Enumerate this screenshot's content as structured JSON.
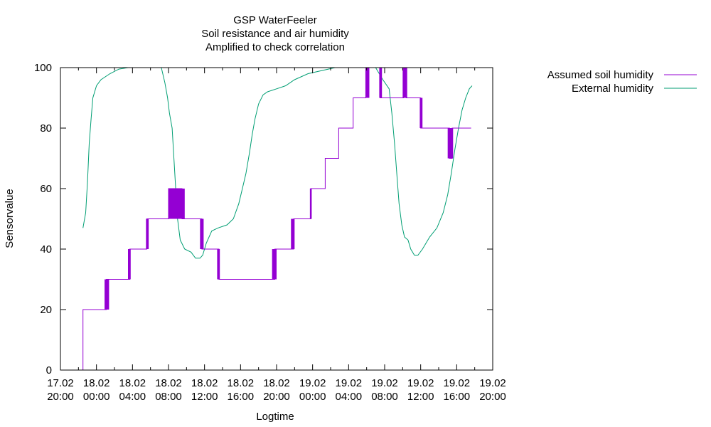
{
  "chart_data": {
    "type": "line",
    "title": "GSP WaterFeeler",
    "subtitle": [
      "Soil resistance and air humidity",
      "Amplified to check correlation"
    ],
    "xlabel": "Logtime",
    "ylabel": "Sensorvalue",
    "xlim_hours": [
      0,
      48
    ],
    "ylim": [
      0,
      100
    ],
    "y_ticks": [
      0,
      20,
      40,
      60,
      80,
      100
    ],
    "x_ticks": [
      {
        "h": 0,
        "date": "17.02",
        "time": "20:00"
      },
      {
        "h": 4,
        "date": "18.02",
        "time": "00:00"
      },
      {
        "h": 8,
        "date": "18.02",
        "time": "04:00"
      },
      {
        "h": 12,
        "date": "18.02",
        "time": "08:00"
      },
      {
        "h": 16,
        "date": "18.02",
        "time": "12:00"
      },
      {
        "h": 20,
        "date": "18.02",
        "time": "16:00"
      },
      {
        "h": 24,
        "date": "18.02",
        "time": "20:00"
      },
      {
        "h": 28,
        "date": "19.02",
        "time": "00:00"
      },
      {
        "h": 32,
        "date": "19.02",
        "time": "04:00"
      },
      {
        "h": 36,
        "date": "19.02",
        "time": "08:00"
      },
      {
        "h": 40,
        "date": "19.02",
        "time": "12:00"
      },
      {
        "h": 44,
        "date": "19.02",
        "time": "16:00"
      },
      {
        "h": 48,
        "date": "19.02",
        "time": "20:00"
      }
    ],
    "grid": false,
    "legend_position": "outside-top-right",
    "series": [
      {
        "name": "Assumed soil humidity",
        "color": "#9400d3",
        "style": "step",
        "points": [
          [
            2.5,
            0
          ],
          [
            2.5,
            20
          ],
          [
            5.1,
            20
          ],
          [
            5.1,
            30
          ],
          [
            7.7,
            30
          ],
          [
            7.7,
            40
          ],
          [
            9.6,
            40
          ],
          [
            9.6,
            50
          ],
          [
            12.0,
            50
          ],
          [
            12.0,
            60
          ],
          [
            13.5,
            60
          ],
          [
            13.5,
            50
          ],
          [
            15.7,
            50
          ],
          [
            15.7,
            40
          ],
          [
            17.6,
            40
          ],
          [
            17.6,
            30
          ],
          [
            23.8,
            30
          ],
          [
            23.8,
            40
          ],
          [
            25.9,
            40
          ],
          [
            25.9,
            50
          ],
          [
            27.8,
            50
          ],
          [
            27.8,
            60
          ],
          [
            29.4,
            60
          ],
          [
            29.4,
            70
          ],
          [
            30.9,
            70
          ],
          [
            30.9,
            80
          ],
          [
            32.5,
            80
          ],
          [
            32.5,
            90
          ],
          [
            33.9,
            90
          ],
          [
            33.9,
            100
          ],
          [
            35.5,
            100
          ],
          [
            35.5,
            90
          ],
          [
            38.1,
            90
          ],
          [
            38.1,
            100
          ],
          [
            38.4,
            100
          ],
          [
            38.4,
            90
          ],
          [
            40.0,
            90
          ],
          [
            40.0,
            80
          ],
          [
            43.2,
            80
          ],
          [
            43.2,
            70
          ],
          [
            43.5,
            70
          ],
          [
            43.5,
            80
          ],
          [
            45.6,
            80
          ]
        ],
        "noise_bands": [
          {
            "x1": 4.9,
            "x2": 5.4,
            "y1": 20,
            "y2": 30
          },
          {
            "x1": 7.5,
            "x2": 7.8,
            "y1": 30,
            "y2": 40
          },
          {
            "x1": 9.5,
            "x2": 9.8,
            "y1": 40,
            "y2": 50
          },
          {
            "x1": 12.0,
            "x2": 13.8,
            "y1": 50,
            "y2": 60
          },
          {
            "x1": 15.5,
            "x2": 15.9,
            "y1": 40,
            "y2": 50
          },
          {
            "x1": 17.4,
            "x2": 17.7,
            "y1": 30,
            "y2": 40
          },
          {
            "x1": 23.5,
            "x2": 24.0,
            "y1": 30,
            "y2": 40
          },
          {
            "x1": 25.6,
            "x2": 26.0,
            "y1": 40,
            "y2": 50
          },
          {
            "x1": 27.7,
            "x2": 27.9,
            "y1": 50,
            "y2": 60
          },
          {
            "x1": 33.9,
            "x2": 34.3,
            "y1": 90,
            "y2": 100
          },
          {
            "x1": 35.4,
            "x2": 35.7,
            "y1": 90,
            "y2": 100
          },
          {
            "x1": 38.0,
            "x2": 38.5,
            "y1": 90,
            "y2": 100
          },
          {
            "x1": 39.9,
            "x2": 40.2,
            "y1": 80,
            "y2": 90
          },
          {
            "x1": 43.0,
            "x2": 43.6,
            "y1": 70,
            "y2": 80
          }
        ]
      },
      {
        "name": "External humidity",
        "color": "#009e73",
        "style": "line",
        "points": [
          [
            2.5,
            47
          ],
          [
            2.8,
            52
          ],
          [
            3.0,
            62
          ],
          [
            3.2,
            75
          ],
          [
            3.4,
            83
          ],
          [
            3.6,
            90
          ],
          [
            4.0,
            94
          ],
          [
            4.5,
            96
          ],
          [
            5.5,
            98
          ],
          [
            6.5,
            99.5
          ],
          [
            7.5,
            100
          ],
          [
            11.2,
            100
          ],
          [
            11.6,
            95
          ],
          [
            11.9,
            90
          ],
          [
            12.1,
            85
          ],
          [
            12.4,
            80
          ],
          [
            12.6,
            70
          ],
          [
            12.8,
            60
          ],
          [
            13.0,
            50
          ],
          [
            13.3,
            43
          ],
          [
            13.8,
            40
          ],
          [
            14.5,
            39
          ],
          [
            15.0,
            37
          ],
          [
            15.5,
            37
          ],
          [
            15.8,
            38
          ],
          [
            16.2,
            42
          ],
          [
            16.8,
            46
          ],
          [
            17.5,
            47
          ],
          [
            18.5,
            48
          ],
          [
            19.2,
            50
          ],
          [
            19.8,
            55
          ],
          [
            20.2,
            60
          ],
          [
            20.6,
            65
          ],
          [
            21.0,
            72
          ],
          [
            21.3,
            78
          ],
          [
            21.6,
            83
          ],
          [
            22.0,
            88
          ],
          [
            22.5,
            91
          ],
          [
            23.0,
            92
          ],
          [
            24.0,
            93
          ],
          [
            25.0,
            94
          ],
          [
            26.0,
            96
          ],
          [
            27.5,
            98
          ],
          [
            29.0,
            99
          ],
          [
            30.5,
            100
          ],
          [
            33.5,
            100
          ],
          [
            35.0,
            100
          ],
          [
            35.8,
            96
          ],
          [
            36.5,
            93
          ],
          [
            36.8,
            85
          ],
          [
            37.1,
            75
          ],
          [
            37.4,
            63
          ],
          [
            37.6,
            55
          ],
          [
            37.9,
            48
          ],
          [
            38.2,
            44
          ],
          [
            38.6,
            43
          ],
          [
            38.9,
            40
          ],
          [
            39.3,
            38
          ],
          [
            39.7,
            38
          ],
          [
            40.2,
            40
          ],
          [
            41.0,
            44
          ],
          [
            41.8,
            47
          ],
          [
            42.5,
            52
          ],
          [
            43.0,
            58
          ],
          [
            43.4,
            65
          ],
          [
            43.8,
            73
          ],
          [
            44.2,
            80
          ],
          [
            44.6,
            86
          ],
          [
            45.0,
            90
          ],
          [
            45.4,
            93
          ],
          [
            45.7,
            94
          ]
        ]
      }
    ]
  }
}
